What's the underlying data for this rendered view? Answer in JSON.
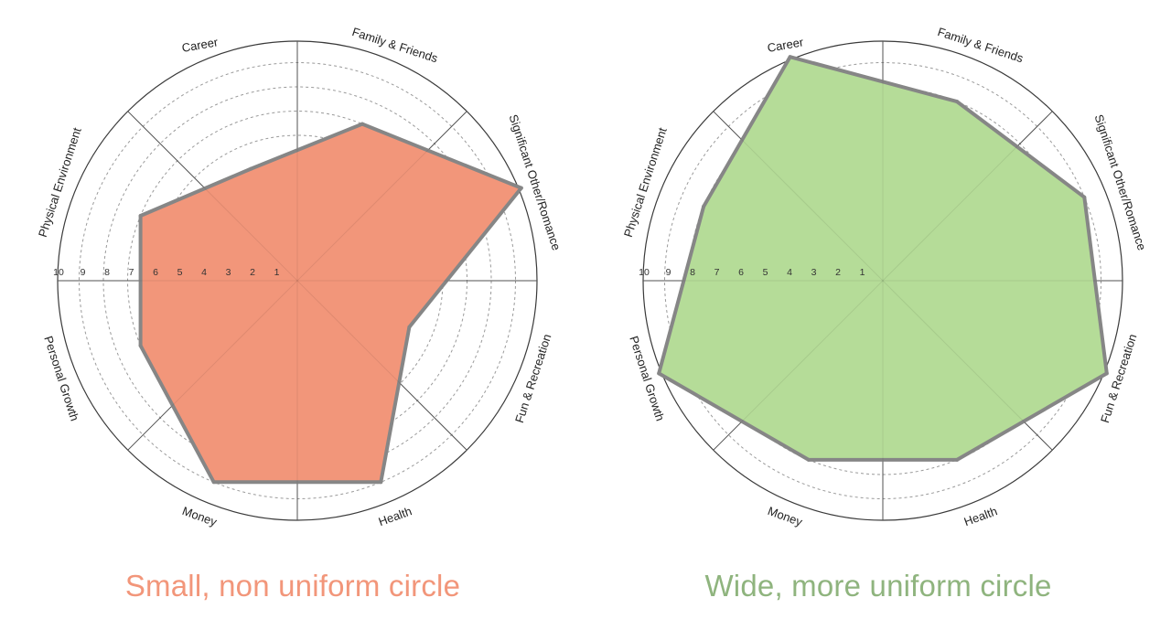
{
  "chart_data": [
    {
      "type": "radar",
      "title": "",
      "scale": [
        1,
        10
      ],
      "tick_labels": [
        "10",
        "9",
        "8",
        "7",
        "6",
        "5",
        "4",
        "3",
        "2",
        "1"
      ],
      "categories": [
        "Career",
        "Family & Friends",
        "Significant Other/Romance",
        "Fun & Recreation",
        "Health",
        "Money",
        "Personal Growth",
        "Physical Environment"
      ],
      "values": [
        5,
        7,
        10,
        5,
        9,
        9,
        7,
        7
      ],
      "fill_color": "#f2967a",
      "stroke_color": "#868686",
      "grid": true
    },
    {
      "type": "radar",
      "title": "",
      "scale": [
        1,
        10
      ],
      "tick_labels": [
        "10",
        "9",
        "8",
        "7",
        "6",
        "5",
        "4",
        "3",
        "2",
        "1"
      ],
      "categories": [
        "Career",
        "Family & Friends",
        "Significant Other/Romance",
        "Fun & Recreation",
        "Health",
        "Money",
        "Personal Growth",
        "Physical Environment"
      ],
      "values": [
        10,
        8,
        9,
        10,
        8,
        8,
        10,
        8
      ],
      "fill_color": "#b5dc98",
      "stroke_color": "#868686",
      "grid": true
    }
  ],
  "captions": {
    "left": "Small, non uniform circle",
    "right": "Wide, more uniform circle"
  },
  "colors": {
    "caption_left": "#f2967a",
    "caption_right": "#8fb47e"
  }
}
